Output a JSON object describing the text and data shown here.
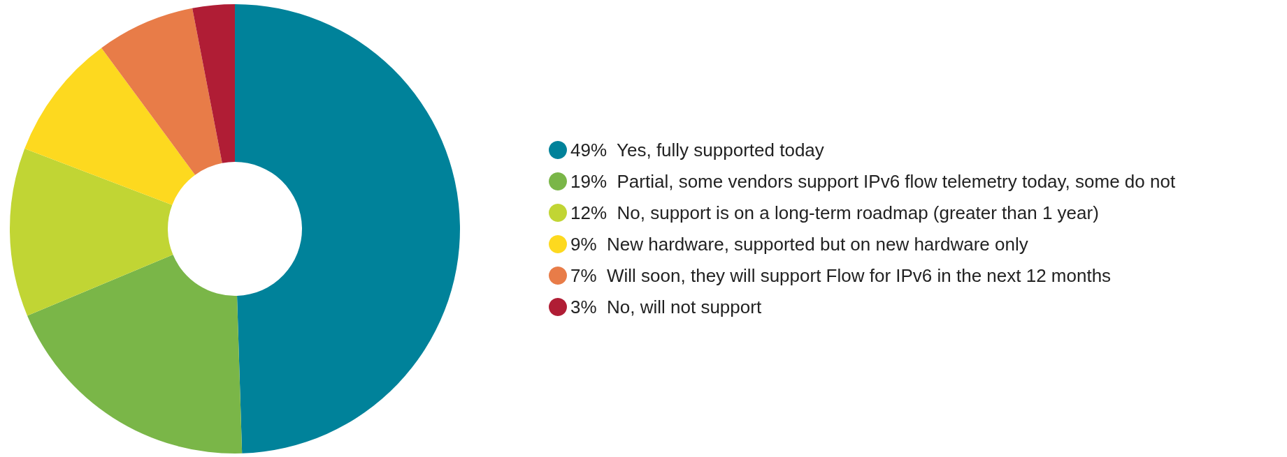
{
  "chart_data": {
    "type": "donut",
    "categories": [
      "Yes, fully supported today",
      "Partial, some vendors support IPv6 flow telemetry today, some do not",
      "No, support is on a long-term roadmap (greater than 1 year)",
      "New hardware, supported but on new hardware only",
      "Will soon, they will support Flow for IPv6 in the next 12 months",
      "No, will not support"
    ],
    "values": [
      49,
      19,
      12,
      9,
      7,
      3
    ],
    "colors": [
      "#00829a",
      "#7ab648",
      "#c1d534",
      "#fdd91f",
      "#e87c48",
      "#b01d35"
    ],
    "value_labels": [
      "49%",
      "19%",
      "12%",
      "9%",
      "7%",
      "3%"
    ],
    "legend": "right"
  }
}
